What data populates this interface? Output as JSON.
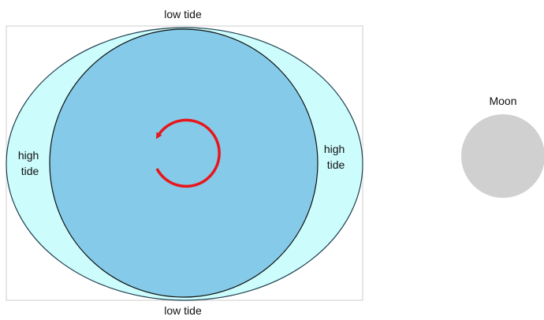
{
  "labels": {
    "top": "low tide",
    "bottom": "low tide",
    "left": [
      "high",
      "tide"
    ],
    "right": [
      "high",
      "tide"
    ],
    "moon": "Moon"
  }
}
